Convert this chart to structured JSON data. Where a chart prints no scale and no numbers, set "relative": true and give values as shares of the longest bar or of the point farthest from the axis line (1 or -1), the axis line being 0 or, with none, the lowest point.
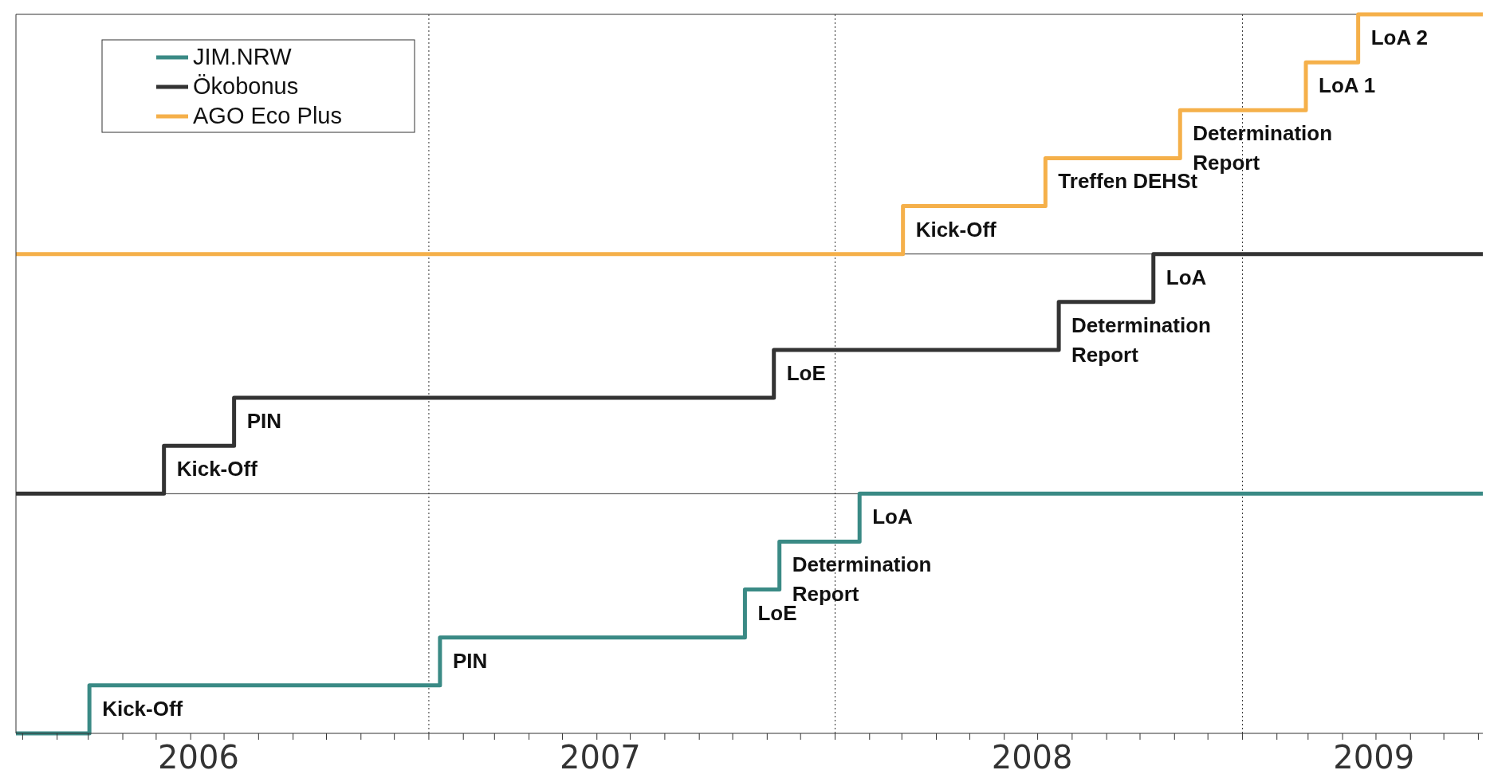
{
  "chart_data": {
    "type": "step",
    "relative": true,
    "legend": "top left",
    "xlim": [
      "2005-12-26",
      "2009-08-05"
    ],
    "xticks": [
      {
        "value": "2006-01-01",
        "label": null
      },
      {
        "value": "2006-02-01",
        "label": null
      },
      {
        "value": "2006-03-01",
        "label": null
      },
      {
        "value": "2006-04-01",
        "label": null
      },
      {
        "value": "2006-05-01",
        "label": null
      },
      {
        "value": "2006-06-01",
        "label": null
      },
      {
        "value": "2006-07-01",
        "label": null
      },
      {
        "value": "2006-06-08",
        "label": "2006"
      },
      {
        "value": "2006-08-01",
        "label": null
      },
      {
        "value": "2006-09-01",
        "label": null
      },
      {
        "value": "2006-10-01",
        "label": null
      },
      {
        "value": "2006-11-01",
        "label": null
      },
      {
        "value": "2006-12-01",
        "label": null
      },
      {
        "value": "2007-01-01",
        "label": null
      },
      {
        "value": "2007-02-01",
        "label": null
      },
      {
        "value": "2007-03-01",
        "label": null
      },
      {
        "value": "2007-04-01",
        "label": null
      },
      {
        "value": "2007-05-01",
        "label": null
      },
      {
        "value": "2007-06-01",
        "label": null
      },
      {
        "value": "2007-07-01",
        "label": null
      },
      {
        "value": "2007-06-04",
        "label": "2007"
      },
      {
        "value": "2007-08-01",
        "label": null
      },
      {
        "value": "2007-09-01",
        "label": null
      },
      {
        "value": "2007-10-01",
        "label": null
      },
      {
        "value": "2007-11-01",
        "label": null
      },
      {
        "value": "2007-12-01",
        "label": null
      },
      {
        "value": "2008-01-01",
        "label": null
      },
      {
        "value": "2008-02-01",
        "label": null
      },
      {
        "value": "2008-03-01",
        "label": null
      },
      {
        "value": "2008-04-01",
        "label": null
      },
      {
        "value": "2008-05-01",
        "label": null
      },
      {
        "value": "2008-06-01",
        "label": null
      },
      {
        "value": "2008-07-01",
        "label": null
      },
      {
        "value": "2008-06-26",
        "label": "2008"
      },
      {
        "value": "2008-08-01",
        "label": null
      },
      {
        "value": "2008-09-01",
        "label": null
      },
      {
        "value": "2008-10-01",
        "label": null
      },
      {
        "value": "2008-11-01",
        "label": null
      },
      {
        "value": "2008-12-01",
        "label": null
      },
      {
        "value": "2009-01-01",
        "label": null
      },
      {
        "value": "2009-02-01",
        "label": null
      },
      {
        "value": "2009-03-01",
        "label": null
      },
      {
        "value": "2009-04-01",
        "label": null
      },
      {
        "value": "2009-05-01",
        "label": null
      },
      {
        "value": "2009-06-01",
        "label": null
      },
      {
        "value": "2009-07-01",
        "label": null
      },
      {
        "value": "2009-04-29",
        "label": "2009"
      },
      {
        "value": "2009-08-01",
        "label": null
      }
    ],
    "ref_lines": [
      {
        "axis": "x",
        "value": "2007-01-01",
        "line_style": "dotted",
        "color": "#333333"
      },
      {
        "axis": "x",
        "value": "2008-01-01",
        "line_style": "dotted",
        "color": "#333333"
      },
      {
        "axis": "x",
        "value": "2009-01-01",
        "line_style": "dotted",
        "color": "#333333"
      },
      {
        "axis": "y",
        "value": 0.3333,
        "line_style": "solid",
        "color": "#333333"
      },
      {
        "axis": "y",
        "value": 0.6667,
        "line_style": "solid",
        "color": "#333333"
      },
      {
        "axis": "y",
        "value": 1,
        "line_style": "solid",
        "color": "#333333"
      }
    ],
    "series": [
      {
        "name": "JIM.NRW",
        "color": "#3a8a85",
        "x": [
          "2005-12-26",
          "2006-03-02",
          "2007-01-11",
          "2007-10-12",
          "2007-11-12",
          "2008-01-23",
          "2009-08-05"
        ],
        "values": [
          0,
          0.0667,
          0.1333,
          0.2,
          0.2667,
          0.3333,
          0.3333
        ]
      },
      {
        "name": "Ökobonus",
        "color": "#333333",
        "x": [
          "2005-12-26",
          "2006-05-08",
          "2006-07-10",
          "2007-11-07",
          "2008-07-20",
          "2008-10-13",
          "2009-08-05"
        ],
        "values": [
          0.3333,
          0.4,
          0.4667,
          0.5333,
          0.6,
          0.6667,
          0.6667
        ]
      },
      {
        "name": "AGO Eco Plus",
        "color": "#f5b04a",
        "x": [
          "2005-12-26",
          "2008-03-02",
          "2008-07-08",
          "2008-11-06",
          "2009-02-27",
          "2009-04-15",
          "2009-08-05"
        ],
        "values": [
          0.6667,
          0.7333,
          0.8,
          0.8667,
          0.9333,
          1,
          1
        ]
      }
    ],
    "annotations": [
      {
        "text": "Kick-Off",
        "x": "2006-03-02",
        "y": 0.0667
      },
      {
        "text": "PIN",
        "x": "2007-01-11",
        "y": 0.1333
      },
      {
        "text": "LoE",
        "x": "2007-10-12",
        "y": 0.2
      },
      {
        "text": "Determination\nReport",
        "x": "2007-11-12",
        "y": 0.2667
      },
      {
        "text": "LoA",
        "x": "2008-01-23",
        "y": 0.3333
      },
      {
        "text": "Kick-Off",
        "x": "2006-05-08",
        "y": 0.4
      },
      {
        "text": "PIN",
        "x": "2006-07-10",
        "y": 0.4667
      },
      {
        "text": "LoE",
        "x": "2007-11-07",
        "y": 0.5333
      },
      {
        "text": "Determination\nReport",
        "x": "2008-07-20",
        "y": 0.6
      },
      {
        "text": "LoA",
        "x": "2008-10-13",
        "y": 0.6667
      },
      {
        "text": "Kick-Off",
        "x": "2008-03-02",
        "y": 0.7333
      },
      {
        "text": "Treffen DEHSt",
        "x": "2008-07-08",
        "y": 0.8
      },
      {
        "text": "Determination\nReport",
        "x": "2008-11-06",
        "y": 0.8667
      },
      {
        "text": "LoA 1",
        "x": "2009-02-27",
        "y": 0.9333
      },
      {
        "text": "LoA 2",
        "x": "2009-04-15",
        "y": 1
      }
    ]
  }
}
